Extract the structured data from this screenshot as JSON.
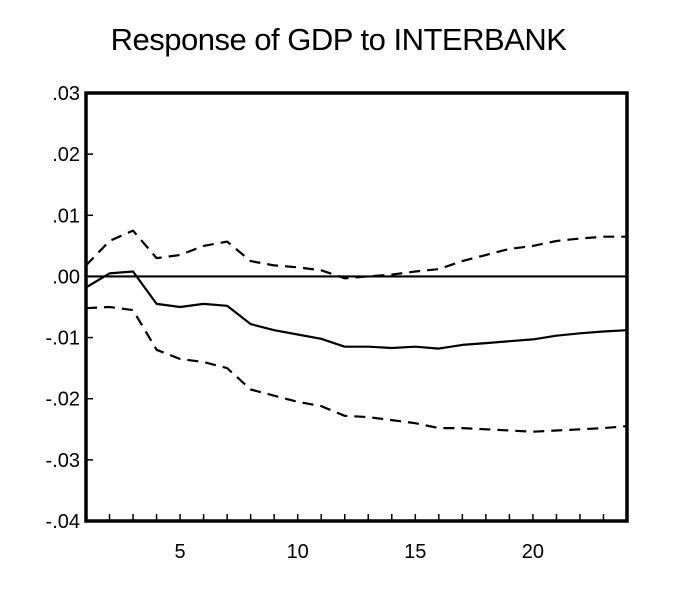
{
  "chart_data": {
    "type": "line",
    "title": "Response of GDP to INTERBANK",
    "xlabel": "",
    "ylabel": "",
    "xlim": [
      1,
      24
    ],
    "ylim": [
      -0.04,
      0.03
    ],
    "grid": false,
    "x_ticks": [
      {
        "value": 5,
        "label": "5"
      },
      {
        "value": 10,
        "label": "10"
      },
      {
        "value": 15,
        "label": "15"
      },
      {
        "value": 20,
        "label": "20"
      }
    ],
    "y_ticks": [
      {
        "value": 0.03,
        "label": ".03"
      },
      {
        "value": 0.02,
        "label": ".02"
      },
      {
        "value": 0.01,
        "label": ".01"
      },
      {
        "value": 0.0,
        "label": ".00"
      },
      {
        "value": -0.01,
        "label": "-.01"
      },
      {
        "value": -0.02,
        "label": "-.02"
      },
      {
        "value": -0.03,
        "label": "-.03"
      },
      {
        "value": -0.04,
        "label": "-.04"
      }
    ],
    "reference_line": 0,
    "x": [
      1,
      2,
      3,
      4,
      5,
      6,
      7,
      8,
      9,
      10,
      11,
      12,
      13,
      14,
      15,
      16,
      17,
      18,
      19,
      20,
      21,
      22,
      23,
      24
    ],
    "series": [
      {
        "style": "solid",
        "values": [
          -0.0018,
          0.0005,
          0.0008,
          -0.0045,
          -0.005,
          -0.0045,
          -0.0048,
          -0.0078,
          -0.0088,
          -0.0095,
          -0.0102,
          -0.0115,
          -0.0115,
          -0.0117,
          -0.0115,
          -0.0118,
          -0.0112,
          -0.0109,
          -0.0106,
          -0.0103,
          -0.0097,
          -0.0093,
          -0.009,
          -0.0088
        ]
      },
      {
        "style": "dashed",
        "values": [
          0.0018,
          0.0058,
          0.0075,
          0.003,
          0.0035,
          0.005,
          0.0057,
          0.0025,
          0.0018,
          0.0015,
          0.001,
          -0.0003,
          0.0,
          0.0003,
          0.0008,
          0.0012,
          0.0025,
          0.0035,
          0.0045,
          0.005,
          0.0058,
          0.0062,
          0.0065,
          0.0065
        ]
      },
      {
        "style": "dashed",
        "values": [
          -0.0052,
          -0.005,
          -0.0055,
          -0.012,
          -0.0135,
          -0.014,
          -0.015,
          -0.0185,
          -0.0195,
          -0.0205,
          -0.0212,
          -0.0228,
          -0.023,
          -0.0235,
          -0.024,
          -0.0248,
          -0.0248,
          -0.025,
          -0.0252,
          -0.0254,
          -0.0252,
          -0.025,
          -0.0248,
          -0.0245
        ]
      }
    ]
  }
}
